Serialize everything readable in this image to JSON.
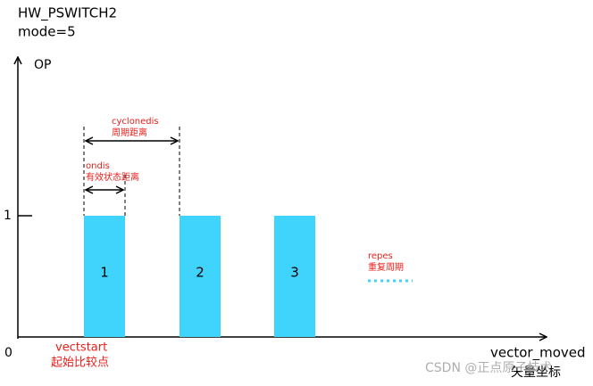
{
  "header": {
    "lines": [
      "HW_PSWITCH2",
      "mode=5"
    ]
  },
  "axes": {
    "y_label": "OP",
    "y_high": "1",
    "origin": "0",
    "x_label": "vector_moved",
    "x_label_cn": "矢量坐标"
  },
  "pulses": [
    {
      "label": "1"
    },
    {
      "label": "2"
    },
    {
      "label": "3"
    }
  ],
  "annotations": {
    "cyclonedis": [
      "cyclonedis",
      "周期距离"
    ],
    "ondis": [
      "ondis",
      "有效状态距离"
    ],
    "repes": [
      "repes",
      "重复周期"
    ],
    "vectstart": [
      "vectstart",
      "起始比较点"
    ]
  },
  "watermark": "CSDN @正点原子技术"
}
